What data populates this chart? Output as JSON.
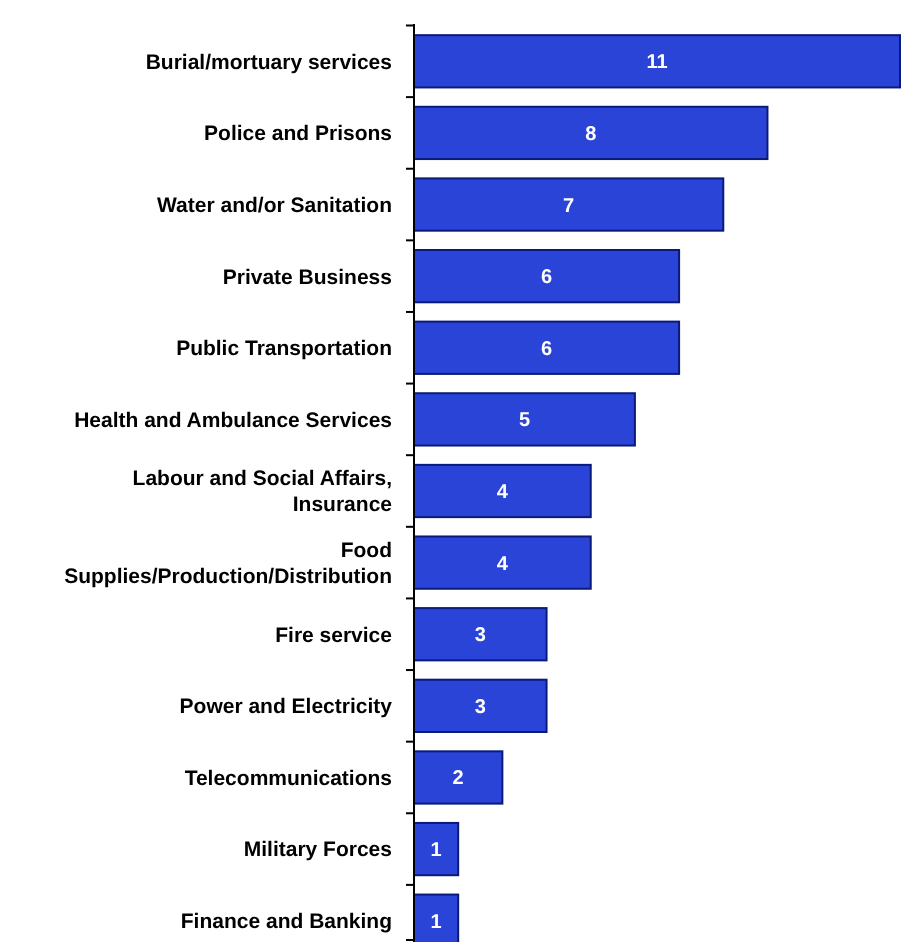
{
  "chart_data": {
    "type": "bar",
    "orientation": "horizontal",
    "data_labels": true,
    "color": "#2b44d8",
    "categories": [
      "Burial/mortuary services",
      "Police and Prisons",
      "Water and/or Sanitation",
      "Private Business",
      "Public Transportation",
      "Health and Ambulance Services",
      "Labour and Social Affairs,\nInsurance",
      "Food\nSupplies/Production/Distribution",
      "Fire service",
      "Power and Electricity",
      "Telecommunications",
      "Military Forces",
      "Finance and Banking"
    ],
    "values": [
      11,
      8,
      7,
      6,
      6,
      5,
      4,
      4,
      3,
      3,
      2,
      1,
      1
    ]
  }
}
